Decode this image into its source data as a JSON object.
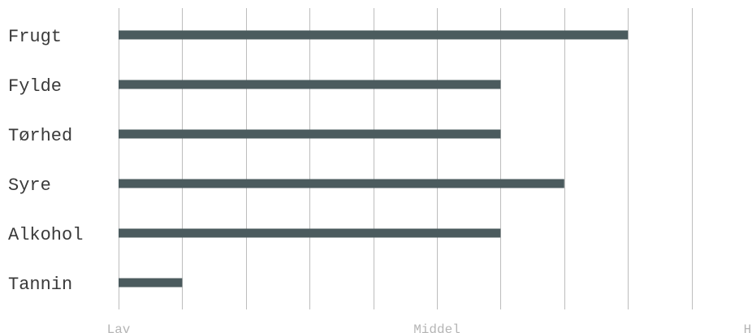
{
  "chart_data": {
    "type": "bar",
    "orientation": "horizontal",
    "categories": [
      "Frugt",
      "Fylde",
      "Tørhed",
      "Syre",
      "Alkohol",
      "Tannin"
    ],
    "values": [
      8,
      6,
      6,
      7,
      6,
      1
    ],
    "xlim": [
      0,
      10
    ],
    "grid": true,
    "x_tick_labels": [
      {
        "value": 0,
        "label": "Lav"
      },
      {
        "value": 5,
        "label": "Middel"
      },
      {
        "value": 10,
        "label": "Høj"
      }
    ],
    "bar_color": "#4b5b5e",
    "grid_color": "#bdbdbd",
    "title": "",
    "xlabel": "",
    "ylabel": ""
  }
}
